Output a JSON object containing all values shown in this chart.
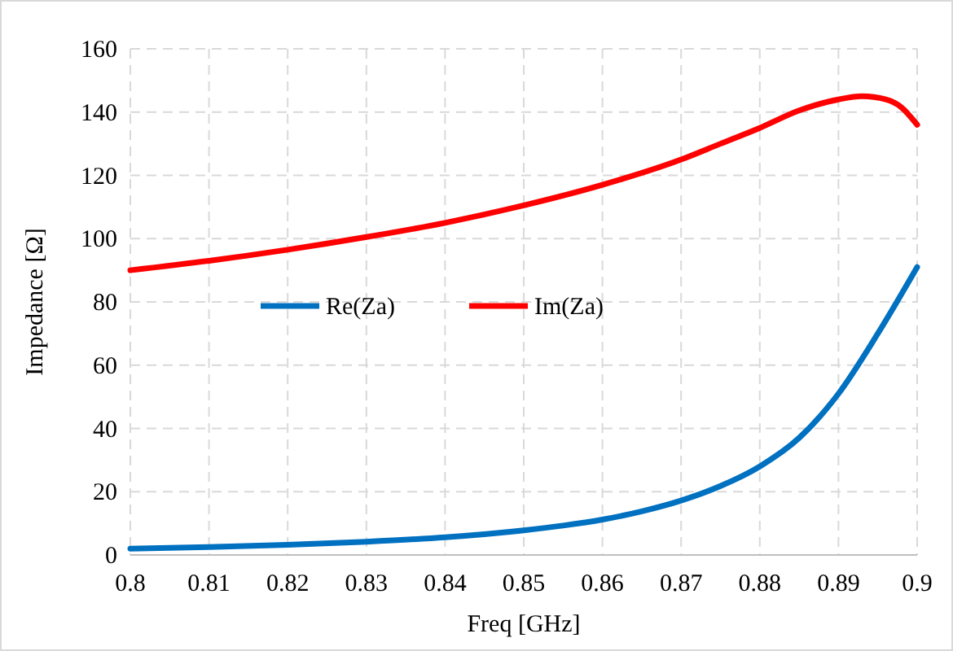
{
  "chart_data": {
    "type": "line",
    "xlabel": "Freq [GHz]",
    "ylabel": "Impedance [Ω]",
    "xlim": [
      0.8,
      0.9
    ],
    "xticks": [
      {
        "value": 0.8,
        "label": "0.8"
      },
      0.81,
      0.82,
      0.83,
      0.84,
      0.85,
      0.86,
      0.87,
      0.88,
      0.89,
      {
        "value": 0.9,
        "label": "0.9"
      }
    ],
    "ylim": [
      0,
      160
    ],
    "yticks": [
      0,
      20,
      40,
      60,
      80,
      100,
      120,
      140,
      160
    ],
    "grid": true,
    "legend": "left",
    "marker": "none",
    "line_style": "solid",
    "series": [
      {
        "name": "Re(Za)",
        "color": "#0070c0",
        "x": [
          0.8,
          0.81,
          0.82,
          0.83,
          0.84,
          0.85,
          0.855,
          0.86,
          0.865,
          0.87,
          0.875,
          0.88,
          0.885,
          0.89,
          0.895,
          0.9
        ],
        "values": [
          2,
          2.5,
          3.2,
          4.2,
          5.6,
          7.8,
          9.3,
          11.2,
          13.8,
          17.2,
          21.8,
          28,
          37,
          51,
          70,
          91
        ]
      },
      {
        "name": "Im(Za)",
        "color": "#ff0000",
        "x": [
          0.8,
          0.81,
          0.82,
          0.83,
          0.84,
          0.85,
          0.86,
          0.87,
          0.875,
          0.88,
          0.885,
          0.89,
          0.893,
          0.896,
          0.898,
          0.9
        ],
        "values": [
          90,
          93,
          96.5,
          100.5,
          105,
          110.5,
          117,
          125,
          130,
          135,
          140.5,
          144,
          145,
          144,
          141.5,
          136
        ]
      }
    ]
  }
}
